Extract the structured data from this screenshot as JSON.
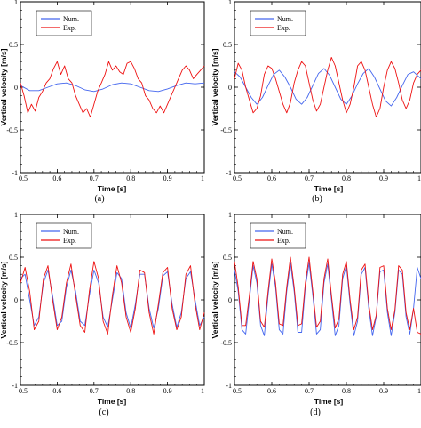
{
  "colors": {
    "num": "#4466ee",
    "exp": "#ee1111"
  },
  "chart_data": [
    {
      "type": "line",
      "label": "(a)",
      "xlabel": "Time [s]",
      "ylabel": "Vertical velocity [m/s]",
      "xlim": [
        0.5,
        1.0
      ],
      "ylim": [
        -1,
        1
      ],
      "xticks": [
        "0.5",
        "0.6",
        "0.7",
        "0.8",
        "0.9",
        "1"
      ],
      "yticks": [
        "-1",
        "-0.5",
        "0",
        "0.5",
        "1"
      ],
      "legend": "top-left",
      "grid": false,
      "series": [
        {
          "name": "Num.",
          "x": [
            0.5,
            0.525,
            0.55,
            0.575,
            0.6,
            0.625,
            0.65,
            0.675,
            0.7,
            0.725,
            0.75,
            0.775,
            0.8,
            0.825,
            0.85,
            0.875,
            0.9,
            0.925,
            0.95,
            0.975,
            1.0
          ],
          "y": [
            0.02,
            -0.04,
            -0.04,
            0.0,
            0.04,
            0.05,
            0.02,
            -0.03,
            -0.05,
            -0.02,
            0.03,
            0.05,
            0.04,
            0.0,
            -0.04,
            -0.05,
            -0.02,
            0.02,
            0.05,
            0.04,
            0.05
          ]
        },
        {
          "name": "Exp.",
          "x": [
            0.5,
            0.51,
            0.52,
            0.53,
            0.54,
            0.55,
            0.56,
            0.57,
            0.58,
            0.59,
            0.6,
            0.61,
            0.62,
            0.63,
            0.64,
            0.65,
            0.66,
            0.67,
            0.68,
            0.69,
            0.7,
            0.71,
            0.72,
            0.73,
            0.74,
            0.75,
            0.76,
            0.77,
            0.78,
            0.79,
            0.8,
            0.81,
            0.82,
            0.83,
            0.84,
            0.85,
            0.86,
            0.87,
            0.88,
            0.89,
            0.9,
            0.91,
            0.92,
            0.93,
            0.94,
            0.95,
            0.96,
            0.97,
            0.98,
            0.99,
            1.0
          ],
          "y": [
            0.05,
            -0.1,
            -0.3,
            -0.2,
            -0.28,
            -0.12,
            -0.05,
            0.05,
            0.1,
            0.22,
            0.3,
            0.15,
            0.25,
            0.1,
            0.05,
            -0.1,
            -0.2,
            -0.3,
            -0.25,
            -0.35,
            -0.2,
            -0.05,
            0.05,
            0.15,
            0.3,
            0.2,
            0.25,
            0.18,
            0.15,
            0.28,
            0.3,
            0.22,
            0.1,
            0.05,
            -0.1,
            -0.15,
            -0.25,
            -0.3,
            -0.22,
            -0.3,
            -0.2,
            -0.1,
            0.0,
            0.1,
            0.2,
            0.25,
            0.2,
            0.1,
            0.15,
            0.2,
            0.25
          ]
        }
      ]
    },
    {
      "type": "line",
      "label": "(b)",
      "xlabel": "Time [s]",
      "ylabel": "Vertical velocity [m/s]",
      "xlim": [
        0.5,
        1.0
      ],
      "ylim": [
        -1,
        1
      ],
      "xticks": [
        "0.5",
        "0.6",
        "0.7",
        "0.8",
        "0.9",
        "1"
      ],
      "yticks": [
        "-1",
        "-0.5",
        "0",
        "0.5",
        "1"
      ],
      "legend": "top-left",
      "grid": false,
      "series": [
        {
          "name": "Num.",
          "x": [
            0.5,
            0.515,
            0.53,
            0.545,
            0.56,
            0.575,
            0.59,
            0.605,
            0.62,
            0.635,
            0.65,
            0.665,
            0.68,
            0.695,
            0.71,
            0.725,
            0.74,
            0.755,
            0.77,
            0.785,
            0.8,
            0.815,
            0.83,
            0.845,
            0.86,
            0.875,
            0.89,
            0.905,
            0.92,
            0.935,
            0.95,
            0.965,
            0.98,
            1.0
          ],
          "y": [
            0.18,
            0.12,
            0.0,
            -0.12,
            -0.2,
            -0.12,
            0.02,
            0.15,
            0.2,
            0.12,
            0.0,
            -0.14,
            -0.2,
            -0.12,
            0.02,
            0.16,
            0.22,
            0.14,
            0.0,
            -0.14,
            -0.2,
            -0.1,
            0.04,
            0.16,
            0.22,
            0.12,
            -0.02,
            -0.16,
            -0.22,
            -0.12,
            0.02,
            0.15,
            0.18,
            0.1
          ]
        },
        {
          "name": "Exp.",
          "x": [
            0.5,
            0.51,
            0.52,
            0.53,
            0.54,
            0.55,
            0.56,
            0.57,
            0.58,
            0.59,
            0.6,
            0.61,
            0.62,
            0.63,
            0.64,
            0.65,
            0.66,
            0.67,
            0.68,
            0.69,
            0.7,
            0.71,
            0.72,
            0.73,
            0.74,
            0.75,
            0.76,
            0.77,
            0.78,
            0.79,
            0.8,
            0.81,
            0.82,
            0.83,
            0.84,
            0.85,
            0.86,
            0.87,
            0.88,
            0.89,
            0.9,
            0.91,
            0.92,
            0.93,
            0.94,
            0.95,
            0.96,
            0.97,
            0.98,
            0.99,
            1.0
          ],
          "y": [
            0.1,
            0.28,
            0.2,
            0.0,
            -0.15,
            -0.3,
            -0.25,
            -0.1,
            0.15,
            0.25,
            0.22,
            0.1,
            -0.05,
            -0.2,
            -0.3,
            -0.18,
            0.05,
            0.2,
            0.3,
            0.25,
            0.05,
            -0.15,
            -0.28,
            -0.2,
            0.0,
            0.2,
            0.35,
            0.25,
            0.05,
            -0.15,
            -0.3,
            -0.2,
            0.0,
            0.25,
            0.3,
            0.2,
            0.0,
            -0.2,
            -0.35,
            -0.25,
            0.0,
            0.2,
            0.3,
            0.22,
            0.05,
            -0.15,
            -0.25,
            -0.15,
            0.05,
            0.15,
            0.2
          ]
        }
      ]
    },
    {
      "type": "line",
      "label": "(c)",
      "xlabel": "Time [s]",
      "ylabel": "Vertical velocity [m/s]",
      "xlim": [
        0.5,
        1.0
      ],
      "ylim": [
        -1,
        1
      ],
      "xticks": [
        "0.5",
        "0.6",
        "0.7",
        "0.8",
        "0.9",
        "1"
      ],
      "yticks": [
        "-1",
        "-0.5",
        "0",
        "0.5",
        "1"
      ],
      "legend": "top-left",
      "grid": false,
      "series": [
        {
          "name": "Num.",
          "x": [
            0.5,
            0.5125,
            0.525,
            0.5375,
            0.55,
            0.5625,
            0.575,
            0.5875,
            0.6,
            0.6125,
            0.625,
            0.6375,
            0.65,
            0.6625,
            0.675,
            0.6875,
            0.7,
            0.7125,
            0.725,
            0.7375,
            0.75,
            0.7625,
            0.775,
            0.7875,
            0.8,
            0.8125,
            0.825,
            0.8375,
            0.85,
            0.8625,
            0.875,
            0.8875,
            0.9,
            0.9125,
            0.925,
            0.9375,
            0.95,
            0.9625,
            0.975,
            0.9875,
            1.0
          ],
          "y": [
            0.25,
            0.3,
            0.0,
            -0.3,
            -0.2,
            0.2,
            0.35,
            0.05,
            -0.3,
            -0.25,
            0.15,
            0.35,
            0.1,
            -0.25,
            -0.3,
            0.05,
            0.35,
            0.2,
            -0.2,
            -0.32,
            0.0,
            0.32,
            0.25,
            -0.15,
            -0.33,
            -0.05,
            0.3,
            0.3,
            -0.1,
            -0.33,
            -0.1,
            0.28,
            0.33,
            -0.05,
            -0.32,
            -0.15,
            0.25,
            0.33,
            0.0,
            -0.3,
            -0.2
          ]
        },
        {
          "name": "Exp.",
          "x": [
            0.5,
            0.5125,
            0.525,
            0.5375,
            0.55,
            0.5625,
            0.575,
            0.5875,
            0.6,
            0.6125,
            0.625,
            0.6375,
            0.65,
            0.6625,
            0.675,
            0.6875,
            0.7,
            0.7125,
            0.725,
            0.7375,
            0.75,
            0.7625,
            0.775,
            0.7875,
            0.8,
            0.8125,
            0.825,
            0.8375,
            0.85,
            0.8625,
            0.875,
            0.8875,
            0.9,
            0.9125,
            0.925,
            0.9375,
            0.95,
            0.9625,
            0.975,
            0.9875,
            1.0
          ],
          "y": [
            0.2,
            0.38,
            0.1,
            -0.35,
            -0.25,
            0.25,
            0.4,
            0.0,
            -0.35,
            -0.2,
            0.2,
            0.42,
            0.05,
            -0.3,
            -0.38,
            0.1,
            0.45,
            0.25,
            -0.25,
            -0.4,
            0.05,
            0.4,
            0.2,
            -0.2,
            -0.38,
            -0.1,
            0.35,
            0.32,
            -0.15,
            -0.4,
            -0.05,
            0.32,
            0.38,
            -0.1,
            -0.35,
            -0.2,
            0.3,
            0.4,
            -0.05,
            -0.35,
            -0.15
          ]
        }
      ]
    },
    {
      "type": "line",
      "label": "(d)",
      "xlabel": "Time [s]",
      "ylabel": "Vertical velocity [m/s]",
      "xlim": [
        0.5,
        1.0
      ],
      "ylim": [
        -1,
        1
      ],
      "xticks": [
        "0.5",
        "0.6",
        "0.7",
        "0.8",
        "0.9",
        "1"
      ],
      "yticks": [
        "-1",
        "-0.5",
        "0",
        "0.5",
        "1"
      ],
      "legend": "top-left",
      "grid": false,
      "series": [
        {
          "name": "Num.",
          "x": [
            0.5,
            0.51,
            0.52,
            0.53,
            0.54,
            0.55,
            0.56,
            0.57,
            0.58,
            0.59,
            0.6,
            0.61,
            0.62,
            0.63,
            0.64,
            0.65,
            0.66,
            0.67,
            0.68,
            0.69,
            0.7,
            0.71,
            0.72,
            0.73,
            0.74,
            0.75,
            0.76,
            0.77,
            0.78,
            0.79,
            0.8,
            0.81,
            0.82,
            0.83,
            0.84,
            0.85,
            0.86,
            0.87,
            0.88,
            0.89,
            0.9,
            0.91,
            0.92,
            0.93,
            0.94,
            0.95,
            0.96,
            0.97,
            0.98,
            0.99,
            1.0
          ],
          "y": [
            0.35,
            0.1,
            -0.35,
            -0.4,
            0.0,
            0.4,
            0.2,
            -0.3,
            -0.42,
            0.05,
            0.42,
            0.15,
            -0.35,
            -0.4,
            0.1,
            0.43,
            0.1,
            -0.38,
            -0.38,
            0.15,
            0.43,
            0.05,
            -0.4,
            -0.35,
            0.2,
            0.42,
            0.0,
            -0.42,
            -0.3,
            0.25,
            0.4,
            -0.05,
            -0.42,
            -0.25,
            0.3,
            0.38,
            -0.1,
            -0.42,
            -0.2,
            0.33,
            0.35,
            -0.15,
            -0.42,
            -0.15,
            0.35,
            0.3,
            -0.2,
            -0.4,
            -0.1,
            0.38,
            0.25
          ]
        },
        {
          "name": "Exp.",
          "x": [
            0.5,
            0.51,
            0.52,
            0.53,
            0.54,
            0.55,
            0.56,
            0.57,
            0.58,
            0.59,
            0.6,
            0.61,
            0.62,
            0.63,
            0.64,
            0.65,
            0.66,
            0.67,
            0.68,
            0.69,
            0.7,
            0.71,
            0.72,
            0.73,
            0.74,
            0.75,
            0.76,
            0.77,
            0.78,
            0.79,
            0.8,
            0.81,
            0.82,
            0.83,
            0.84,
            0.85,
            0.86,
            0.87,
            0.88,
            0.89,
            0.9,
            0.91,
            0.92,
            0.93,
            0.94,
            0.95,
            0.96,
            0.97,
            0.98,
            0.99,
            1.0
          ],
          "y": [
            0.45,
            0.15,
            -0.3,
            -0.3,
            0.05,
            0.45,
            0.25,
            -0.25,
            -0.32,
            0.1,
            0.48,
            0.2,
            -0.28,
            -0.3,
            0.15,
            0.5,
            0.15,
            -0.3,
            -0.28,
            0.2,
            0.5,
            0.1,
            -0.32,
            -0.25,
            0.25,
            0.48,
            0.05,
            -0.33,
            -0.22,
            0.3,
            0.45,
            0.0,
            -0.35,
            -0.2,
            0.35,
            0.42,
            -0.05,
            -0.35,
            -0.18,
            0.38,
            0.4,
            -0.1,
            -0.35,
            -0.12,
            0.4,
            0.35,
            -0.15,
            -0.35,
            -0.1,
            -0.38,
            -0.4
          ]
        }
      ]
    }
  ]
}
